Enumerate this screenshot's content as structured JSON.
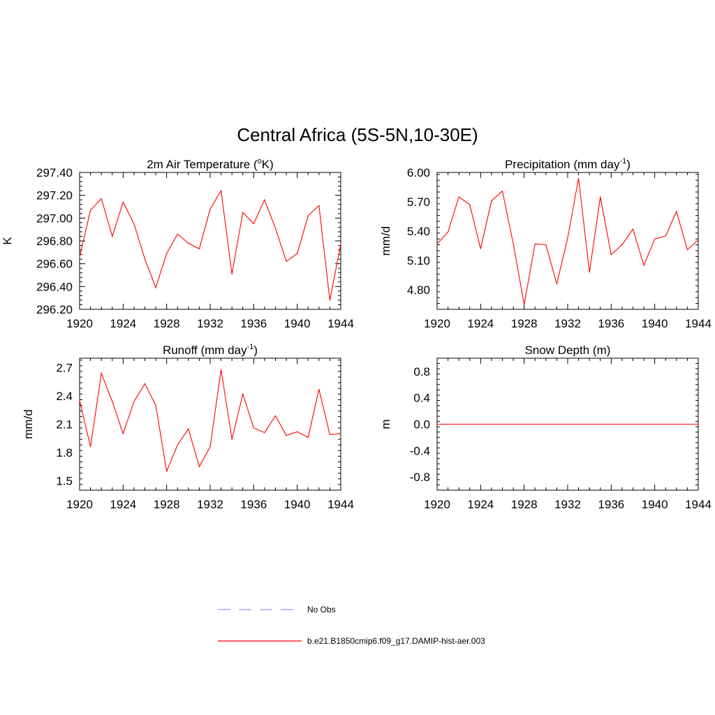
{
  "figure": {
    "title": "Central Africa (5S-5N,10-30E)"
  },
  "legend": {
    "placement": "bottom-center",
    "entries": [
      {
        "label": "No Obs",
        "color": "#9999ff",
        "style": "dashed"
      },
      {
        "label": "b.e21.B1850cmip6.f09_g17.DAMIP-hist-aer.003",
        "color": "#ff0000",
        "style": "solid"
      }
    ]
  },
  "chart_data": [
    {
      "type": "line",
      "title": "2m Air Temperature (",
      "title_sup": "o",
      "title_after": "K)",
      "ylabel": "K",
      "xlabel": "",
      "xlim": [
        1920,
        1944
      ],
      "ylim": [
        296.2,
        297.4
      ],
      "x_ticks": [
        "1920",
        "1924",
        "1928",
        "1932",
        "1936",
        "1940",
        "1944"
      ],
      "y_ticks": [
        "296.20",
        "296.40",
        "296.60",
        "296.80",
        "297.00",
        "297.20",
        "297.40"
      ],
      "grid": false,
      "series": [
        {
          "color": "#ff0000",
          "x": [
            1920,
            1921,
            1922,
            1923,
            1924,
            1925,
            1926,
            1927,
            1928,
            1929,
            1930,
            1931,
            1932,
            1933,
            1934,
            1935,
            1936,
            1937,
            1938,
            1939,
            1940,
            1941,
            1942,
            1943,
            1944
          ],
          "values": [
            296.66,
            297.07,
            297.17,
            296.84,
            297.14,
            296.95,
            296.64,
            296.39,
            296.69,
            296.86,
            296.78,
            296.73,
            297.08,
            297.24,
            296.51,
            297.05,
            296.95,
            297.16,
            296.91,
            296.62,
            296.69,
            297.02,
            297.11,
            296.28,
            296.77
          ]
        }
      ]
    },
    {
      "type": "line",
      "title": "Precipitation (mm day",
      "title_sup": "-1",
      "title_after": ")",
      "ylabel": "mm/d",
      "xlabel": "",
      "xlim": [
        1920,
        1944
      ],
      "ylim": [
        4.6,
        6.0
      ],
      "x_ticks": [
        "1920",
        "1924",
        "1928",
        "1932",
        "1936",
        "1940",
        "1944"
      ],
      "y_ticks": [
        "4.80",
        "5.10",
        "5.40",
        "5.70",
        "6.00"
      ],
      "grid": false,
      "series": [
        {
          "color": "#ff0000",
          "x": [
            1920,
            1921,
            1922,
            1923,
            1924,
            1925,
            1926,
            1927,
            1928,
            1929,
            1930,
            1931,
            1932,
            1933,
            1934,
            1935,
            1936,
            1937,
            1938,
            1939,
            1940,
            1941,
            1942,
            1943,
            1944
          ],
          "values": [
            5.27,
            5.39,
            5.75,
            5.67,
            5.22,
            5.71,
            5.81,
            5.27,
            4.65,
            5.27,
            5.26,
            4.86,
            5.33,
            5.94,
            4.98,
            5.75,
            5.16,
            5.26,
            5.42,
            5.05,
            5.32,
            5.35,
            5.6,
            5.21,
            5.31
          ]
        }
      ]
    },
    {
      "type": "line",
      "title": "Runoff (mm day",
      "title_sup": "-1",
      "title_after": ")",
      "ylabel": "mm/d",
      "xlabel": "",
      "xlim": [
        1920,
        1944
      ],
      "ylim": [
        1.4,
        2.8
      ],
      "x_ticks": [
        "1920",
        "1924",
        "1928",
        "1932",
        "1936",
        "1940",
        "1944"
      ],
      "y_ticks": [
        "1.5",
        "1.8",
        "2.1",
        "2.4",
        "2.7"
      ],
      "grid": false,
      "series": [
        {
          "color": "#ff0000",
          "x": [
            1920,
            1921,
            1922,
            1923,
            1924,
            1925,
            1926,
            1927,
            1928,
            1929,
            1930,
            1931,
            1932,
            1933,
            1934,
            1935,
            1936,
            1937,
            1938,
            1939,
            1940,
            1941,
            1942,
            1943,
            1944
          ],
          "values": [
            2.35,
            1.86,
            2.64,
            2.34,
            2.0,
            2.34,
            2.53,
            2.3,
            1.6,
            1.88,
            2.05,
            1.65,
            1.86,
            2.68,
            1.94,
            2.42,
            2.06,
            2.01,
            2.19,
            1.98,
            2.02,
            1.96,
            2.47,
            1.99,
            2.0
          ]
        }
      ]
    },
    {
      "type": "line",
      "title": "Snow Depth (m)",
      "title_sup": "",
      "title_after": "",
      "ylabel": "m",
      "xlabel": "",
      "xlim": [
        1920,
        1944
      ],
      "ylim": [
        -1.0,
        1.0
      ],
      "x_ticks": [
        "1920",
        "1924",
        "1928",
        "1932",
        "1936",
        "1940",
        "1944"
      ],
      "y_ticks": [
        "-0.8",
        "-0.4",
        "0.0",
        "0.4",
        "0.8"
      ],
      "grid": false,
      "series": [
        {
          "color": "#ff0000",
          "x": [
            1920,
            1921,
            1922,
            1923,
            1924,
            1925,
            1926,
            1927,
            1928,
            1929,
            1930,
            1931,
            1932,
            1933,
            1934,
            1935,
            1936,
            1937,
            1938,
            1939,
            1940,
            1941,
            1942,
            1943,
            1944
          ],
          "values": [
            0,
            0,
            0,
            0,
            0,
            0,
            0,
            0,
            0,
            0,
            0,
            0,
            0,
            0,
            0,
            0,
            0,
            0,
            0,
            0,
            0,
            0,
            0,
            0,
            0
          ]
        }
      ]
    }
  ]
}
